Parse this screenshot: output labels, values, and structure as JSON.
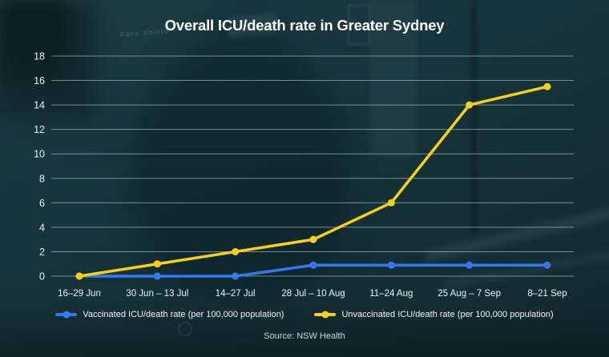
{
  "background_photo": {
    "caption_text": "Face Shield"
  },
  "colors": {
    "background": "#15323a",
    "gridline": "rgba(223,233,235,0.5)",
    "tick_text": "#eef3f4",
    "vaccinated_blue": "#3478f2",
    "unvaccinated_yellow": "#f9d013"
  },
  "chart_data": {
    "type": "line",
    "title": "Overall ICU/death rate in Greater Sydney",
    "categories": [
      "16–29 Jun",
      "30 Jun – 13 Jul",
      "14–27 Jul",
      "28 Jul – 10 Aug",
      "11–24 Aug",
      "25 Aug – 7 Sep",
      "8–21 Sep"
    ],
    "series": [
      {
        "name": "Vaccinated ICU/death rate (per 100,000 population)",
        "color": "#3478f2",
        "values": [
          0,
          0,
          0,
          0.9,
          0.9,
          0.9,
          0.9
        ]
      },
      {
        "name": "Unvaccinated ICU/death rate (per 100,000 population)",
        "color": "#f9d013",
        "values": [
          0,
          1,
          2,
          3,
          6,
          14,
          15.5
        ]
      }
    ],
    "xlabel": "",
    "ylabel": "",
    "ylim": [
      0,
      18
    ],
    "yticks": [
      0,
      2,
      4,
      6,
      8,
      10,
      12,
      14,
      16,
      18
    ],
    "grid": "horizontal",
    "legend_position": "bottom",
    "source_label": "Source: NSW Health"
  }
}
